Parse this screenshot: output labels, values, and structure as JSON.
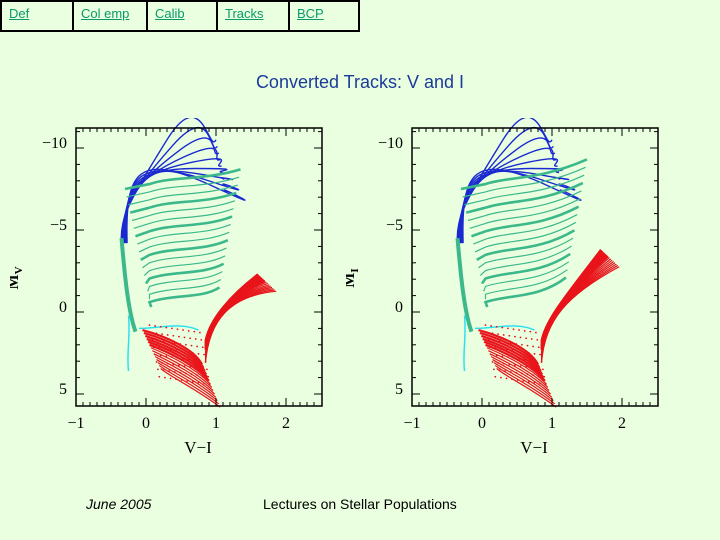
{
  "nav": {
    "items": [
      "Def",
      "Col emp",
      "Calib",
      "Tracks",
      "BCP"
    ]
  },
  "title": "Converted Tracks: V and I",
  "plots": [
    {
      "ylabel_main": "M",
      "ylabel_sub": "V",
      "xlabel": "V−I",
      "xticks": [
        "−1",
        "0",
        "1",
        "2"
      ],
      "yticks": [
        "−10",
        "−5",
        "0",
        "5"
      ]
    },
    {
      "ylabel_main": "M",
      "ylabel_sub": "I",
      "xlabel": "V−I",
      "xticks": [
        "−1",
        "0",
        "1",
        "2"
      ],
      "yticks": [
        "−10",
        "−5",
        "0",
        "5"
      ]
    }
  ],
  "footer": {
    "date": "June 2005",
    "center": "Lectures on Stellar Populations"
  },
  "colors": {
    "background": "#eaffe0",
    "title": "#1b3a9a",
    "nav_link": "#0a9a6a",
    "track_blue": "#1a2ad0",
    "track_green": "#3cb88a",
    "track_cyan": "#2de0f0",
    "track_red": "#e8141a"
  }
}
